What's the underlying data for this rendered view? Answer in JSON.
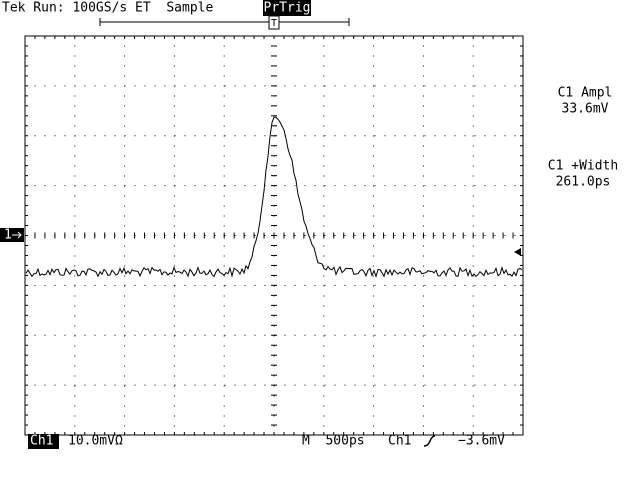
{
  "header": {
    "status": "Tek Run: 100GS/s ET  Sample",
    "trigger_mode": "PrTrig",
    "trigger_marker": "T"
  },
  "channel_marker": "1",
  "measurements": [
    {
      "label": "C1 Ampl",
      "value": "33.6mV"
    },
    {
      "label": "C1 +Width",
      "value": "261.0ps"
    }
  ],
  "footer": {
    "channel": "Ch1",
    "scale": "10.0mVΩ",
    "timebase": "M  500ps",
    "trigger_source": "Ch1",
    "trigger_level": "−3.6mV"
  }
}
